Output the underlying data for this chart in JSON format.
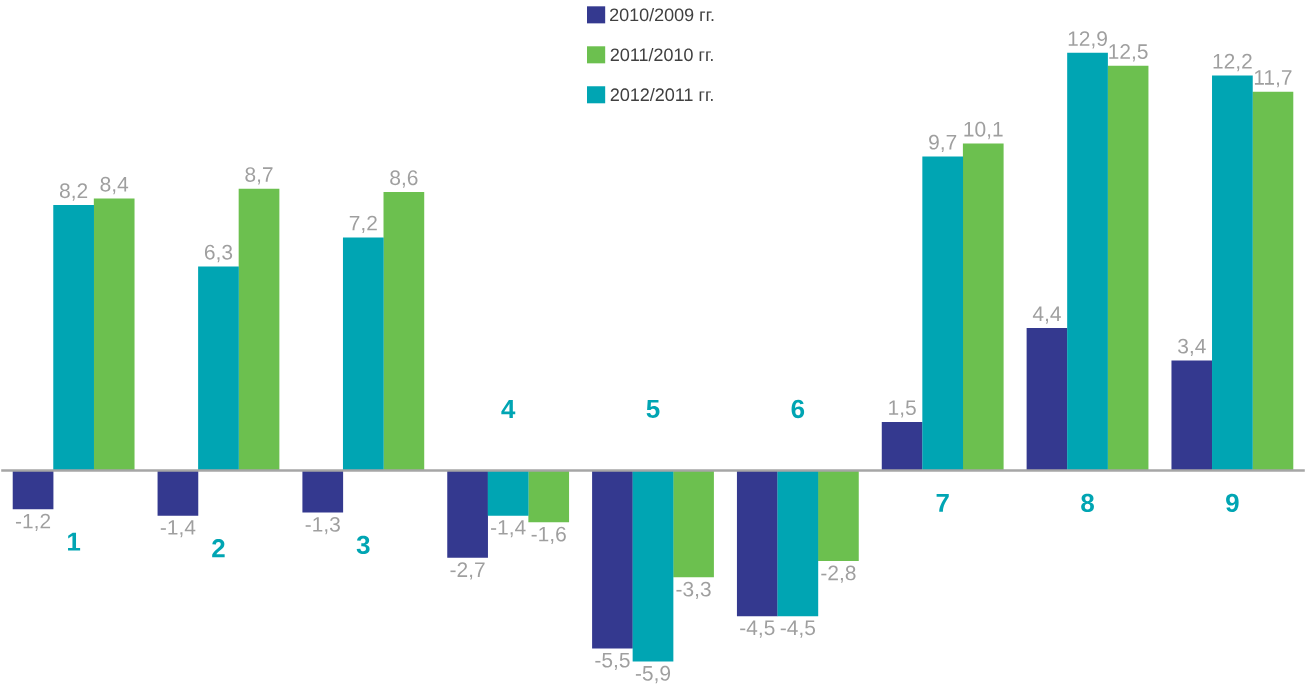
{
  "chart_data": {
    "type": "bar",
    "categories": [
      "1",
      "2",
      "3",
      "4",
      "5",
      "6",
      "7",
      "8",
      "9"
    ],
    "series": [
      {
        "name": "2010/2009  гг.",
        "color": "#34398f",
        "values": [
          -1.2,
          -1.4,
          -1.3,
          -2.7,
          -5.5,
          -4.5,
          1.5,
          4.4,
          3.4
        ],
        "value_labels": [
          "-1,2",
          "-1,4",
          "-1,3",
          "-2,7",
          "-5,5",
          "-4,5",
          "1,5",
          "4,4",
          "3,4"
        ]
      },
      {
        "name": "2011/2010 гг.",
        "color": "#6cc04f",
        "values": [
          8.4,
          8.7,
          8.6,
          -1.6,
          -3.3,
          -2.8,
          10.1,
          12.5,
          11.7
        ],
        "value_labels": [
          "8,4",
          "8,7",
          "8,6",
          "-1,6",
          "-3,3",
          "-2,8",
          "10,1",
          "12,5",
          "11,7"
        ]
      },
      {
        "name": "2012/2011 гг.",
        "color": "#00a5b3",
        "values": [
          8.2,
          6.3,
          7.2,
          -1.4,
          -5.9,
          -4.5,
          9.7,
          12.9,
          12.2
        ],
        "value_labels": [
          "8,2",
          "6,3",
          "7,2",
          "-1,4",
          "-5,9",
          "-4,5",
          "9,7",
          "12,9",
          "12,2"
        ]
      }
    ],
    "legend": "top"
  }
}
